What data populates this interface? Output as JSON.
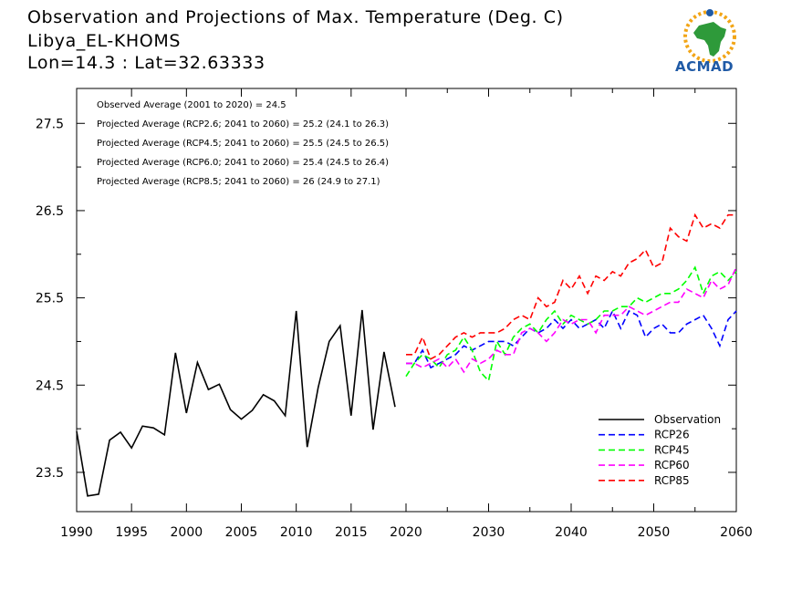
{
  "header": {
    "title": "Observation and Projections of Max. Temperature (Deg. C)",
    "station": "Libya_EL-KHOMS",
    "coords": "Lon=14.3 : Lat=32.63333"
  },
  "logo": {
    "text": "ACMAD",
    "colors": {
      "text": "#1f5aa6",
      "continent": "#2e9a3a",
      "sun": "#f2a516"
    }
  },
  "annotations": [
    "Observed Average (2001 to 2020) = 24.5",
    "Projected Average (RCP2.6; 2041 to 2060) = 25.2 (24.1 to 26.3)",
    "Projected Average (RCP4.5; 2041 to 2060) = 25.5 (24.5 to 26.5)",
    "Projected Average (RCP6.0; 2041 to 2060) = 25.4 (24.5 to 26.4)",
    "Projected Average (RCP8.5; 2041 to 2060) = 26 (24.9 to 27.1)"
  ],
  "chart_data": {
    "type": "line",
    "title": "Observation and Projections of Max. Temperature (Deg. C)",
    "xlabel": "",
    "ylabel": "",
    "xlim": [
      1990,
      2060
    ],
    "ylim": [
      23.05,
      27.9
    ],
    "x_ticks_left": [
      1990,
      1995,
      2000,
      2005,
      2010,
      2015,
      2020
    ],
    "x_ticks_right": [
      2020,
      2030,
      2040,
      2050,
      2060
    ],
    "y_ticks": [
      23.5,
      24.5,
      25.5,
      26.5,
      27.5
    ],
    "y_tick_labels": [
      "23.5",
      "24.5",
      "25.5",
      "26.5",
      "27.5"
    ],
    "grid": false,
    "legend_position": "bottom-right",
    "series": [
      {
        "name": "Observation",
        "color": "#000000",
        "dash": "solid",
        "x": [
          1990,
          1991,
          1992,
          1993,
          1994,
          1995,
          1996,
          1997,
          1998,
          1999,
          2000,
          2001,
          2002,
          2003,
          2004,
          2005,
          2006,
          2007,
          2008,
          2009,
          2010,
          2011,
          2012,
          2013,
          2014,
          2015,
          2016,
          2017,
          2018,
          2019,
          2020
        ],
        "values": [
          23.97,
          23.23,
          23.25,
          23.87,
          23.96,
          23.78,
          24.03,
          24.01,
          23.93,
          24.87,
          24.18,
          24.76,
          24.45,
          24.51,
          24.22,
          24.11,
          24.21,
          24.39,
          24.32,
          24.15,
          25.35,
          23.79,
          24.47,
          25.0,
          25.18,
          24.15,
          25.36,
          23.99,
          24.88,
          24.25,
          null
        ]
      },
      {
        "name": "RCP26",
        "color": "#0000ff",
        "dash": "dashed",
        "x": [
          2020,
          2021,
          2022,
          2023,
          2024,
          2025,
          2026,
          2027,
          2028,
          2029,
          2030,
          2031,
          2032,
          2033,
          2034,
          2035,
          2036,
          2037,
          2038,
          2039,
          2040,
          2041,
          2042,
          2043,
          2044,
          2045,
          2046,
          2047,
          2048,
          2049,
          2050,
          2051,
          2052,
          2053,
          2054,
          2055,
          2056,
          2057,
          2058,
          2059,
          2060
        ],
        "values": [
          24.75,
          24.75,
          24.9,
          24.7,
          24.75,
          24.8,
          24.85,
          24.95,
          24.9,
          24.95,
          25.0,
          25.0,
          25.0,
          24.95,
          25.05,
          25.15,
          25.1,
          25.15,
          25.25,
          25.15,
          25.25,
          25.15,
          25.2,
          25.25,
          25.15,
          25.35,
          25.15,
          25.35,
          25.3,
          25.05,
          25.15,
          25.2,
          25.1,
          25.1,
          25.2,
          25.25,
          25.3,
          25.15,
          24.95,
          25.25,
          25.35
        ]
      },
      {
        "name": "RCP45",
        "color": "#00ff00",
        "dash": "dashed",
        "x": [
          2020,
          2021,
          2022,
          2023,
          2024,
          2025,
          2026,
          2027,
          2028,
          2029,
          2030,
          2031,
          2032,
          2033,
          2034,
          2035,
          2036,
          2037,
          2038,
          2039,
          2040,
          2041,
          2042,
          2043,
          2044,
          2045,
          2046,
          2047,
          2048,
          2049,
          2050,
          2051,
          2052,
          2053,
          2054,
          2055,
          2056,
          2057,
          2058,
          2059,
          2060
        ],
        "values": [
          24.6,
          24.75,
          24.85,
          24.8,
          24.7,
          24.85,
          24.9,
          25.05,
          24.9,
          24.65,
          24.55,
          25.0,
          24.85,
          25.05,
          25.15,
          25.2,
          25.1,
          25.25,
          25.35,
          25.2,
          25.3,
          25.25,
          25.2,
          25.25,
          25.35,
          25.35,
          25.4,
          25.4,
          25.5,
          25.45,
          25.5,
          25.55,
          25.55,
          25.6,
          25.7,
          25.85,
          25.55,
          25.75,
          25.8,
          25.7,
          25.8
        ]
      },
      {
        "name": "RCP60",
        "color": "#ff00ff",
        "dash": "dashed",
        "x": [
          2020,
          2021,
          2022,
          2023,
          2024,
          2025,
          2026,
          2027,
          2028,
          2029,
          2030,
          2031,
          2032,
          2033,
          2034,
          2035,
          2036,
          2037,
          2038,
          2039,
          2040,
          2041,
          2042,
          2043,
          2044,
          2045,
          2046,
          2047,
          2048,
          2049,
          2050,
          2051,
          2052,
          2053,
          2054,
          2055,
          2056,
          2057,
          2058,
          2059,
          2060
        ],
        "values": [
          24.75,
          24.75,
          24.7,
          24.75,
          24.8,
          24.7,
          24.8,
          24.65,
          24.8,
          24.75,
          24.8,
          24.9,
          24.85,
          24.85,
          25.1,
          25.15,
          25.1,
          25.0,
          25.1,
          25.25,
          25.2,
          25.25,
          25.25,
          25.1,
          25.3,
          25.3,
          25.3,
          25.4,
          25.35,
          25.3,
          25.35,
          25.4,
          25.45,
          25.45,
          25.6,
          25.55,
          25.5,
          25.7,
          25.6,
          25.65,
          25.85
        ]
      },
      {
        "name": "RCP85",
        "color": "#ff0000",
        "dash": "dashed",
        "x": [
          2020,
          2021,
          2022,
          2023,
          2024,
          2025,
          2026,
          2027,
          2028,
          2029,
          2030,
          2031,
          2032,
          2033,
          2034,
          2035,
          2036,
          2037,
          2038,
          2039,
          2040,
          2041,
          2042,
          2043,
          2044,
          2045,
          2046,
          2047,
          2048,
          2049,
          2050,
          2051,
          2052,
          2053,
          2054,
          2055,
          2056,
          2057,
          2058,
          2059,
          2060
        ],
        "values": [
          24.85,
          24.85,
          25.05,
          24.8,
          24.85,
          24.95,
          25.05,
          25.1,
          25.05,
          25.1,
          25.1,
          25.1,
          25.15,
          25.25,
          25.3,
          25.25,
          25.5,
          25.4,
          25.45,
          25.7,
          25.6,
          25.75,
          25.55,
          25.75,
          25.7,
          25.8,
          25.75,
          25.9,
          25.95,
          26.05,
          25.85,
          25.9,
          26.3,
          26.2,
          26.15,
          26.45,
          26.3,
          26.35,
          26.3,
          26.45,
          26.45
        ]
      }
    ]
  }
}
